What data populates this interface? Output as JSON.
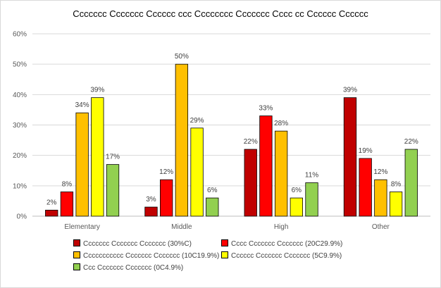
{
  "chart_data": {
    "type": "bar",
    "title": "Ccccccc Ccccccc Cccccc ccc Cccccccc Ccccccc Cccc cc Cccccc Cccccc",
    "categories": [
      "Elementary",
      "Middle",
      "High",
      "Other"
    ],
    "ylim": [
      0,
      60
    ],
    "yticks": [
      0,
      10,
      20,
      30,
      40,
      50,
      60
    ],
    "ytick_labels": [
      "0%",
      "10%",
      "20%",
      "30%",
      "40%",
      "50%",
      "60%"
    ],
    "grid": true,
    "legend_position": "bottom",
    "series": [
      {
        "name": "Ccccccc Ccccccc Ccccccc (30%C)",
        "color": "#C00000",
        "values": [
          2,
          3,
          22,
          39
        ],
        "labels": [
          "2%",
          "3%",
          "22%",
          "39%"
        ]
      },
      {
        "name": "Cccc Ccccccc Ccccccc (20C29.9%)",
        "color": "#FF0000",
        "values": [
          8,
          12,
          33,
          19
        ],
        "labels": [
          "8%",
          "12%",
          "33%",
          "19%"
        ]
      },
      {
        "name": "Ccccccccccc Ccccccc Ccccccc (10C19.9%)",
        "color": "#FFC000",
        "values": [
          34,
          50,
          28,
          12
        ],
        "labels": [
          "34%",
          "50%",
          "28%",
          "12%"
        ]
      },
      {
        "name": "Cccccc Ccccccc Ccccccc (5C9.9%)",
        "color": "#FFFF00",
        "values": [
          39,
          29,
          6,
          8
        ],
        "labels": [
          "39%",
          "29%",
          "6%",
          "8%"
        ]
      },
      {
        "name": "Ccc Ccccccc Ccccccc (0C4.9%)",
        "color": "#92D050",
        "values": [
          17,
          6,
          11,
          22
        ],
        "labels": [
          "17%",
          "6%",
          "11%",
          "22%"
        ]
      }
    ]
  }
}
